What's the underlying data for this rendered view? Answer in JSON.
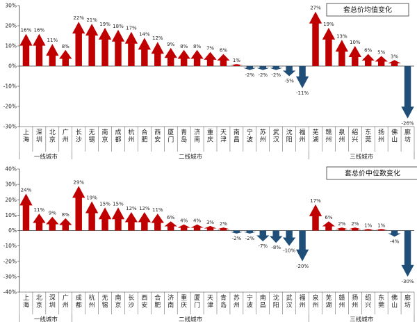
{
  "chart_data": [
    {
      "type": "bar",
      "title": "套总价均值变化",
      "ylim": [
        -30,
        30
      ],
      "yticks": [
        -30,
        -20,
        -10,
        0,
        10,
        20,
        30
      ],
      "categories": [
        "上海",
        "深圳",
        "北京",
        "广州",
        "长沙",
        "无锡",
        "南京",
        "成都",
        "杭州",
        "合肥",
        "西安",
        "厦门",
        "青岛",
        "济南",
        "重庆",
        "天津",
        "南昌",
        "宁波",
        "苏州",
        "武汉",
        "沈阳",
        "福州",
        "芜湖",
        "赣州",
        "泉州",
        "绍兴",
        "东莞",
        "扬州",
        "佛山",
        "廊坊"
      ],
      "values": [
        16,
        16,
        11,
        8,
        22,
        21,
        19,
        18,
        17,
        14,
        12,
        9,
        8,
        8,
        7,
        6,
        1,
        -2,
        -2,
        -2,
        -5,
        -11,
        27,
        19,
        13,
        10,
        6,
        5,
        3,
        -26
      ],
      "data_labels": [
        "16%",
        "16%",
        "11%",
        "8%",
        "22%",
        "21%",
        "19%",
        "18%",
        "17%",
        "14%",
        "12%",
        "9%",
        "8%",
        "8%",
        "7%",
        "6%",
        "1%",
        "-2%",
        "-2%",
        "-2%",
        "-5%",
        "-11%",
        "27%",
        "19%",
        "13%",
        "10%",
        "6%",
        "5%",
        "3%",
        "-26%"
      ],
      "groups": [
        {
          "name": "一线城市",
          "count": 4
        },
        {
          "name": "二线城市",
          "count": 18
        },
        {
          "name": "三线城市",
          "count": 8
        }
      ],
      "colors": {
        "positive": "#c00000",
        "negative": "#1f4e79"
      }
    },
    {
      "type": "bar",
      "title": "套总价中位数变化",
      "ylim": [
        -40,
        40
      ],
      "yticks": [
        -40,
        -30,
        -20,
        -10,
        0,
        10,
        20,
        30,
        40
      ],
      "categories": [
        "上海",
        "北京",
        "深圳",
        "广州",
        "成都",
        "杭州",
        "无锡",
        "南京",
        "长沙",
        "西安",
        "合肥",
        "济南",
        "重庆",
        "厦门",
        "天津",
        "青岛",
        "苏州",
        "宁波",
        "南昌",
        "沈阳",
        "武汉",
        "福州",
        "泉州",
        "芜湖",
        "赣州",
        "扬州",
        "绍兴",
        "东莞",
        "佛山",
        "廊坊"
      ],
      "values": [
        24,
        11,
        9,
        8,
        29,
        19,
        15,
        15,
        12,
        12,
        11,
        6,
        4,
        4,
        3,
        2,
        -2,
        -2,
        -7,
        -8,
        -10,
        -20,
        17,
        6,
        2,
        2,
        1,
        1,
        -4,
        -30
      ],
      "data_labels": [
        "24%",
        "11%",
        "9%",
        "8%",
        "29%",
        "19%",
        "15%",
        "15%",
        "12%",
        "12%",
        "11%",
        "6%",
        "4%",
        "4%",
        "3%",
        "2%",
        "-2%",
        "-2%",
        "-7%",
        "-8%",
        "-10%",
        "-20%",
        "17%",
        "6%",
        "2%",
        "2%",
        "1%",
        "1%",
        "-4%",
        "-30%"
      ],
      "groups": [
        {
          "name": "一线城市",
          "count": 4
        },
        {
          "name": "二线城市",
          "count": 18
        },
        {
          "name": "三线城市",
          "count": 8
        }
      ],
      "colors": {
        "positive": "#c00000",
        "negative": "#1f4e79"
      }
    }
  ]
}
